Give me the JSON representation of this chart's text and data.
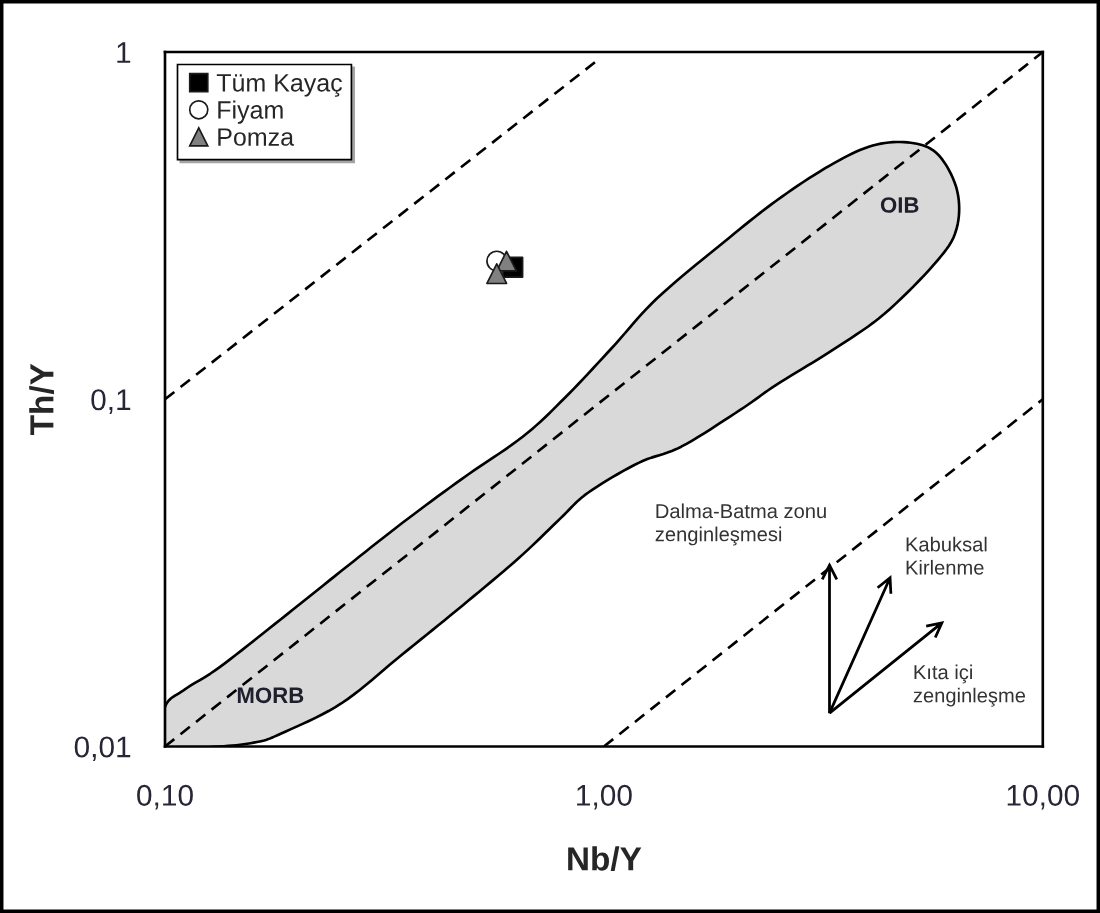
{
  "chart_data": {
    "type": "scatter",
    "xlabel": "Nb/Y",
    "ylabel": "Th/Y",
    "log": "xy",
    "xlim": [
      0.1,
      10
    ],
    "ylim": [
      0.01,
      1
    ],
    "xticks": [
      {
        "value": 0.1,
        "label": "0,10"
      },
      {
        "value": 1,
        "label": "1,00"
      },
      {
        "value": 10,
        "label": "10,00"
      }
    ],
    "yticks": [
      {
        "value": 0.01,
        "label": "0,01"
      },
      {
        "value": 0.1,
        "label": "0,1"
      },
      {
        "value": 1,
        "label": "1"
      }
    ],
    "legend": "top left",
    "series": [
      {
        "type": "area",
        "color": "#d9d9d9",
        "x": [
          0.1,
          0.1,
          0.111,
          0.133,
          0.184,
          0.252,
          0.347,
          0.475,
          0.653,
          0.815,
          1.04,
          1.32,
          1.86,
          2.47,
          3.27,
          4.1,
          5.0,
          5.77,
          6.37,
          6.37,
          5.77,
          4.35,
          3.27,
          2.47,
          2.04,
          1.5,
          1.2,
          0.92,
          0.795,
          0.64,
          0.475,
          0.347,
          0.252,
          0.184,
          0.162,
          0.133
        ],
        "values": [
          0.01,
          0.013,
          0.0146,
          0.0169,
          0.0233,
          0.032,
          0.044,
          0.059,
          0.078,
          0.101,
          0.14,
          0.195,
          0.281,
          0.373,
          0.471,
          0.538,
          0.548,
          0.507,
          0.402,
          0.312,
          0.252,
          0.176,
          0.137,
          0.11,
          0.093,
          0.073,
          0.0656,
          0.0538,
          0.0453,
          0.0349,
          0.0254,
          0.0184,
          0.0133,
          0.0109,
          0.0103,
          0.01
        ]
      },
      {
        "type": "line",
        "color": "#000000",
        "line_style": "dashed",
        "x": [
          0.1,
          0.97
        ],
        "values": [
          0.1,
          0.95
        ]
      },
      {
        "type": "line",
        "color": "#000000",
        "line_style": "dashed",
        "x": [
          0.1,
          10
        ],
        "values": [
          0.01,
          1
        ]
      },
      {
        "type": "line",
        "color": "#000000",
        "line_style": "dashed",
        "x": [
          1,
          10
        ],
        "values": [
          0.01,
          0.1
        ]
      },
      {
        "name": "Tüm Kayaç",
        "marker": "square",
        "color": "#000000",
        "x": [
          0.62
        ],
        "values": [
          0.24
        ]
      },
      {
        "name": "Fiyam",
        "marker": "circle",
        "color": "#ffffff",
        "x": [
          0.57
        ],
        "values": [
          0.25
        ]
      },
      {
        "name": "Pomza",
        "marker": "triangle",
        "color": "#808080",
        "x": [
          0.6,
          0.57
        ],
        "values": [
          0.25,
          0.23
        ]
      }
    ],
    "annotations": [
      "MORB",
      "OIB",
      "Dalma-Batma zonu\nzenginleşmesi",
      "Kabuksal\nKirlenme",
      "Kıta içi\nzenginleşme"
    ]
  }
}
